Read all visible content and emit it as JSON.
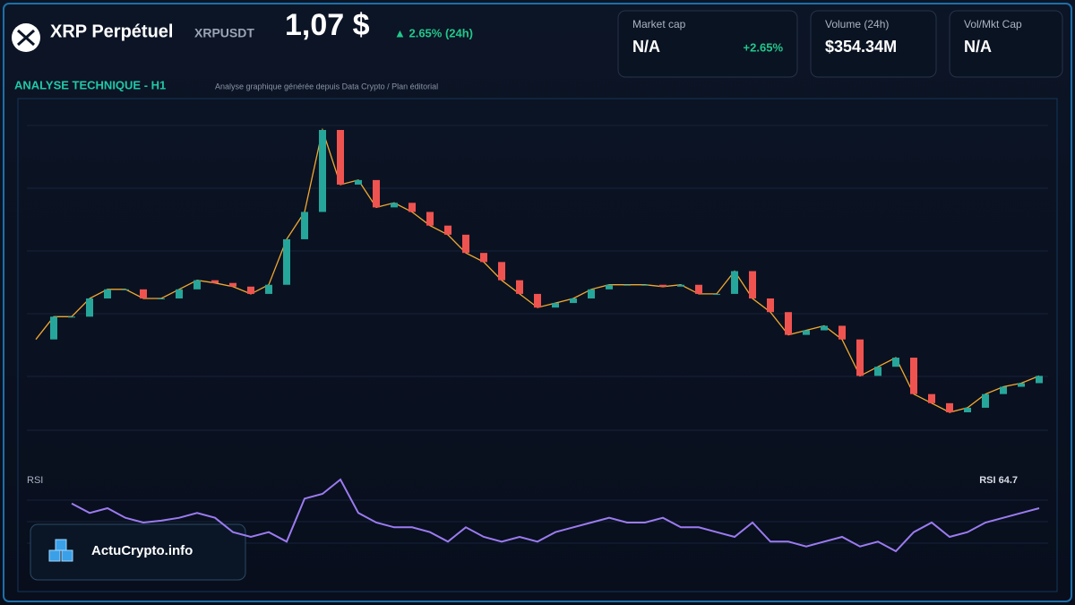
{
  "header": {
    "title": "XRP Perpétuel",
    "symbol": "XRPUSDT",
    "price": "1,07 $",
    "change": "▲ 2.65% (24h)"
  },
  "cards": [
    {
      "label": "Market cap",
      "value": "N/A",
      "extra": "+2.65%"
    },
    {
      "label": "Volume (24h)",
      "value": "$354.34M"
    },
    {
      "label": "Vol/Mkt Cap",
      "value": "N/A"
    }
  ],
  "section": {
    "title": "ANALYSE TECHNIQUE - H1",
    "note": "Analyse graphique générée depuis Data Crypto / Plan éditorial"
  },
  "price_chart": {
    "values": [
      120,
      145,
      145,
      165,
      175,
      175,
      165,
      165,
      175,
      185,
      182,
      178,
      170,
      180,
      230,
      260,
      350,
      290,
      295,
      265,
      270,
      260,
      245,
      235,
      215,
      205,
      185,
      170,
      155,
      160,
      165,
      175,
      180,
      180,
      180,
      178,
      180,
      170,
      170,
      195,
      165,
      150,
      125,
      130,
      135,
      120,
      80,
      90,
      100,
      60,
      50,
      40,
      45,
      60,
      68,
      72,
      80
    ],
    "up_color": "#26a69a",
    "down_color": "#ef5350",
    "line_color": "#f0a830"
  },
  "rsi": {
    "label": "RSI",
    "last_label": "RSI 64.7",
    "color": "#9b7bf0",
    "values": [
      67.7,
      61.7,
      64.7,
      58.7,
      55.7,
      56.9,
      58.7,
      61.7,
      58.7,
      49.7,
      46.7,
      49.7,
      43.7,
      70.7,
      73.7,
      82.7,
      61.7,
      55.7,
      52.7,
      52.7,
      49.7,
      43.7,
      52.7,
      46.7,
      43.7,
      46.7,
      43.7,
      49.7,
      52.7,
      55.7,
      58.7,
      55.7,
      55.7,
      58.7,
      52.7,
      52.7,
      49.7,
      46.7,
      55.7,
      43.7,
      43.7,
      40.7,
      43.7,
      46.7,
      40.7,
      43.7,
      37.7,
      49.7,
      55.7,
      46.7,
      49.7,
      55.7,
      58.7,
      61.7,
      64.7
    ]
  },
  "brand": "ActuCrypto.info"
}
